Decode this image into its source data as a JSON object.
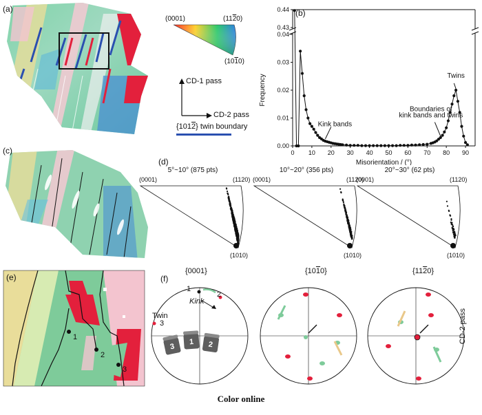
{
  "panels": {
    "a": "(a)",
    "b": "(b)",
    "c": "(c)",
    "d": "(d)",
    "e": "(e)",
    "f": "(f)"
  },
  "legend": {
    "corner_0001": "(0001)",
    "corner_11_20": "(11",
    "corner_11_20_bar": "2",
    "corner_11_20_end": "0)",
    "corner_10_10": "(10",
    "corner_10_10_bar": "1",
    "corner_10_10_end": "0)",
    "cd1": "CD-1 pass",
    "cd2": "CD-2 pass",
    "twin_boundary_pre": "{101",
    "twin_boundary_bar": "2",
    "twin_boundary_post": "} twin boundary",
    "twin_line_color": "#2a4fb0"
  },
  "chart_data": {
    "type": "line",
    "panel": "(b)",
    "xlabel": "Misorientation / (°)",
    "ylabel": "Frequency",
    "xlim": [
      0,
      95
    ],
    "ylim_lower": [
      0,
      0.04
    ],
    "ylim_upper": [
      0.43,
      0.44
    ],
    "xticks": [
      0,
      10,
      20,
      30,
      40,
      50,
      60,
      70,
      80,
      90
    ],
    "yticks_lower": [
      0.0,
      0.01,
      0.02,
      0.03,
      0.04
    ],
    "yticks_upper": [
      0.43,
      0.44
    ],
    "x": [
      1,
      2,
      3,
      4,
      5,
      6,
      7,
      8,
      9,
      10,
      11,
      12,
      13,
      14,
      15,
      16,
      17,
      18,
      19,
      20,
      21,
      22,
      23,
      24,
      25,
      26,
      28,
      30,
      32,
      34,
      36,
      38,
      40,
      42,
      44,
      46,
      48,
      50,
      52,
      54,
      56,
      58,
      60,
      62,
      64,
      66,
      68,
      70,
      72,
      73,
      74,
      75,
      76,
      77,
      78,
      79,
      80,
      81,
      82,
      83,
      84,
      85,
      86,
      87,
      88,
      89,
      90,
      91
    ],
    "y": [
      0.4395,
      0.0,
      0.0,
      0.034,
      0.026,
      0.018,
      0.013,
      0.01,
      0.008,
      0.007,
      0.006,
      0.0048,
      0.0038,
      0.003,
      0.0025,
      0.002,
      0.0017,
      0.0015,
      0.0013,
      0.0011,
      0.0009,
      0.0008,
      0.0007,
      0.0006,
      0.0005,
      0.0004,
      0.0003,
      0.0002,
      0.0002,
      0.0002,
      0.0001,
      0.0001,
      0.0001,
      0.0001,
      0.0001,
      0.0001,
      0.0001,
      0.0001,
      0.0001,
      0.0001,
      0.0002,
      0.0002,
      0.0002,
      0.0003,
      0.0003,
      0.0004,
      0.0005,
      0.0006,
      0.0009,
      0.0011,
      0.0014,
      0.0018,
      0.0024,
      0.003,
      0.0038,
      0.005,
      0.0065,
      0.009,
      0.012,
      0.015,
      0.018,
      0.02,
      0.016,
      0.012,
      0.007,
      0.0035,
      0.0012,
      0.0004
    ],
    "annotations": [
      {
        "text": "Twins",
        "x": 85,
        "y": 0.023
      },
      {
        "text": "Kink bands",
        "x": 22,
        "y": 0.008
      },
      {
        "text": "Boundaries of",
        "x": 72,
        "y": 0.0115
      },
      {
        "text": "kink bands and twins",
        "x": 72,
        "y": 0.0098
      }
    ]
  },
  "ipf": [
    {
      "title": "5°~10° (875 pts)",
      "count": 875
    },
    {
      "title": "10°~20° (356 pts)",
      "count": 356
    },
    {
      "title": "20°~30° (62 pts)",
      "count": 62
    }
  ],
  "pole": {
    "titles": [
      "{0001}",
      "{10",
      "{11"
    ],
    "title_parts": [
      {
        "pre": "{0001}",
        "bar": "",
        "post": ""
      },
      {
        "pre": "{10",
        "bar": "1",
        "post": "0}"
      },
      {
        "pre": "{11",
        "bar": "2",
        "post": "0}"
      }
    ],
    "side_label": "CD-2 pass",
    "kink": "Kink",
    "twin": "Twin",
    "points": [
      "1",
      "2",
      "3"
    ],
    "cubes": [
      "3",
      "1",
      "2"
    ]
  },
  "emap_points": [
    "1",
    "2",
    "3"
  ],
  "caption": "Color online",
  "colors": {
    "grain_green": "#7ecb9a",
    "red": "#e3203c",
    "pink": "#f3c4cf",
    "blue": "#4a8fd3",
    "yellow": "#e9dd9a",
    "cube": "#666666"
  }
}
